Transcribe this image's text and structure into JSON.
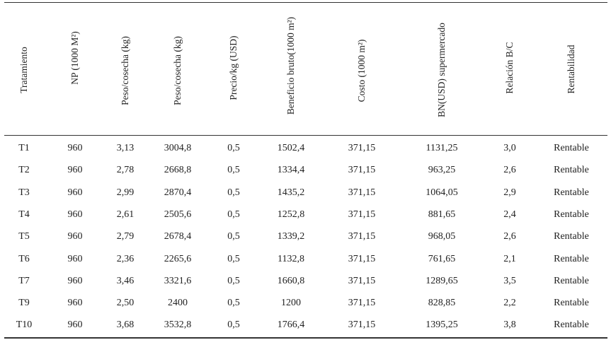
{
  "table": {
    "headers": [
      "Tratamiento",
      "NP (1000 M²)",
      "Peso/cosecha (kg)",
      "Peso/cosecha (kg)",
      "Precio/kg (USD)",
      "Beneficio bruto(1000 m²)",
      "Costo (1000 m²)",
      "BN(USD) supermercado",
      "Relación B/C",
      "Rentabilidad"
    ],
    "rows": [
      [
        "T1",
        "960",
        "3,13",
        "3004,8",
        "0,5",
        "1502,4",
        "371,15",
        "1131,25",
        "3,0",
        "Rentable"
      ],
      [
        "T2",
        "960",
        "2,78",
        "2668,8",
        "0,5",
        "1334,4",
        "371,15",
        "963,25",
        "2,6",
        "Rentable"
      ],
      [
        "T3",
        "960",
        "2,99",
        "2870,4",
        "0,5",
        "1435,2",
        "371,15",
        "1064,05",
        "2,9",
        "Rentable"
      ],
      [
        "T4",
        "960",
        "2,61",
        "2505,6",
        "0,5",
        "1252,8",
        "371,15",
        "881,65",
        "2,4",
        "Rentable"
      ],
      [
        "T5",
        "960",
        "2,79",
        "2678,4",
        "0,5",
        "1339,2",
        "371,15",
        "968,05",
        "2,6",
        "Rentable"
      ],
      [
        "T6",
        "960",
        "2,36",
        "2265,6",
        "0,5",
        "1132,8",
        "371,15",
        "761,65",
        "2,1",
        "Rentable"
      ],
      [
        "T7",
        "960",
        "3,46",
        "3321,6",
        "0,5",
        "1660,8",
        "371,15",
        "1289,65",
        "3,5",
        "Rentable"
      ],
      [
        "T9",
        "960",
        "2,50",
        "2400",
        "0,5",
        "1200",
        "371,15",
        "828,85",
        "2,2",
        "Rentable"
      ],
      [
        "T10",
        "960",
        "3,68",
        "3532,8",
        "0,5",
        "1766,4",
        "371,15",
        "1395,25",
        "3,8",
        "Rentable"
      ]
    ]
  }
}
